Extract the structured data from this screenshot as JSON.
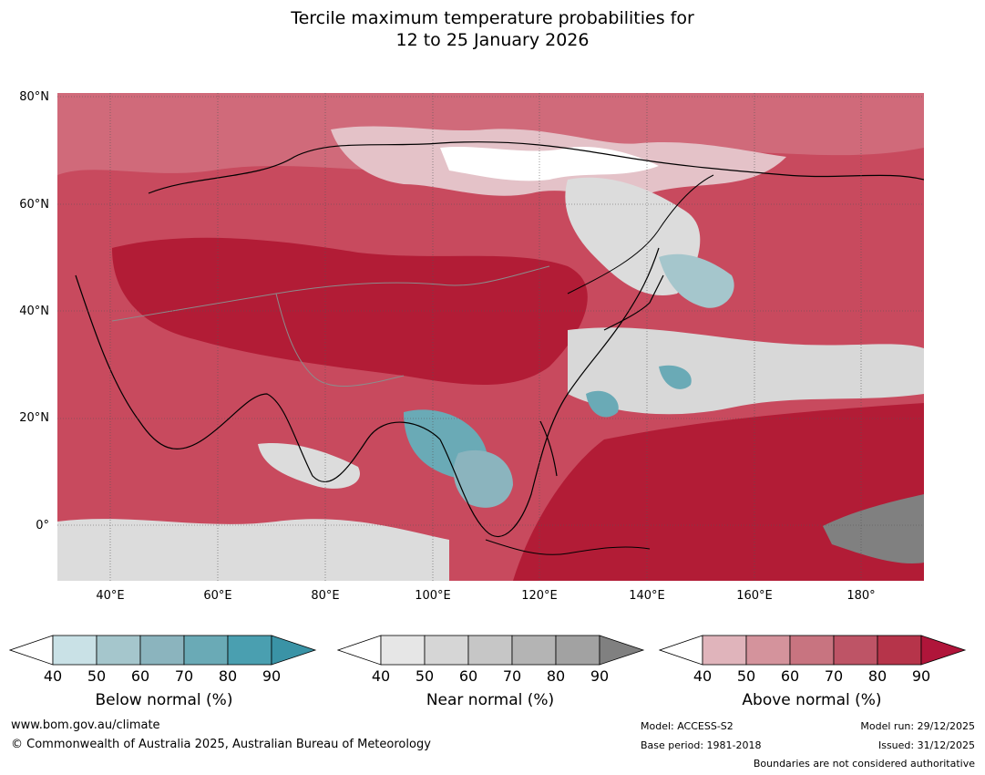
{
  "title": {
    "line1": "Tercile maximum temperature probabilities for",
    "line2": "12 to 25 January 2026"
  },
  "map": {
    "latitude_labels": [
      "80°N",
      "60°N",
      "40°N",
      "20°N",
      "0°"
    ],
    "longitude_labels": [
      "40°E",
      "60°E",
      "80°E",
      "100°E",
      "120°E",
      "140°E",
      "160°E",
      "180°"
    ],
    "colors": {
      "above_dark": "#b21c36",
      "above_mid": "#c84a5e",
      "above_light": "#dca2ab",
      "near_light": "#d8d8d8",
      "below": "#5fa8b8",
      "near_dark": "#808080",
      "coastline": "#000000",
      "borders": "#8c8c8c"
    }
  },
  "colorbars": [
    {
      "label": "Below normal (%)",
      "ticks": [
        "40",
        "50",
        "60",
        "70",
        "80",
        "90"
      ],
      "colors": [
        "#ffffff",
        "#c9e1e6",
        "#a5c6cc",
        "#8bb4be",
        "#6aaab6",
        "#4a9fb0",
        "#3a93a6"
      ]
    },
    {
      "label": "Near normal (%)",
      "ticks": [
        "40",
        "50",
        "60",
        "70",
        "80",
        "90"
      ],
      "colors": [
        "#ffffff",
        "#e6e6e6",
        "#d6d6d6",
        "#c6c6c6",
        "#b4b4b4",
        "#a2a2a2",
        "#808080"
      ]
    },
    {
      "label": "Above normal (%)",
      "ticks": [
        "40",
        "50",
        "60",
        "70",
        "80",
        "90"
      ],
      "colors": [
        "#ffffff",
        "#e0b4bb",
        "#d4939c",
        "#c87480",
        "#be5466",
        "#b6344a",
        "#b0153a"
      ]
    }
  ],
  "footer": {
    "website": "www.bom.gov.au/climate",
    "copyright": "© Commonwealth of Australia 2025, Australian Bureau of Meteorology",
    "model": "Model: ACCESS-S2",
    "base_period": "Base period: 1981-2018",
    "model_run": "Model run: 29/12/2025",
    "issued": "Issued: 31/12/2025",
    "disclaimer": "Boundaries are not considered authoritative"
  }
}
